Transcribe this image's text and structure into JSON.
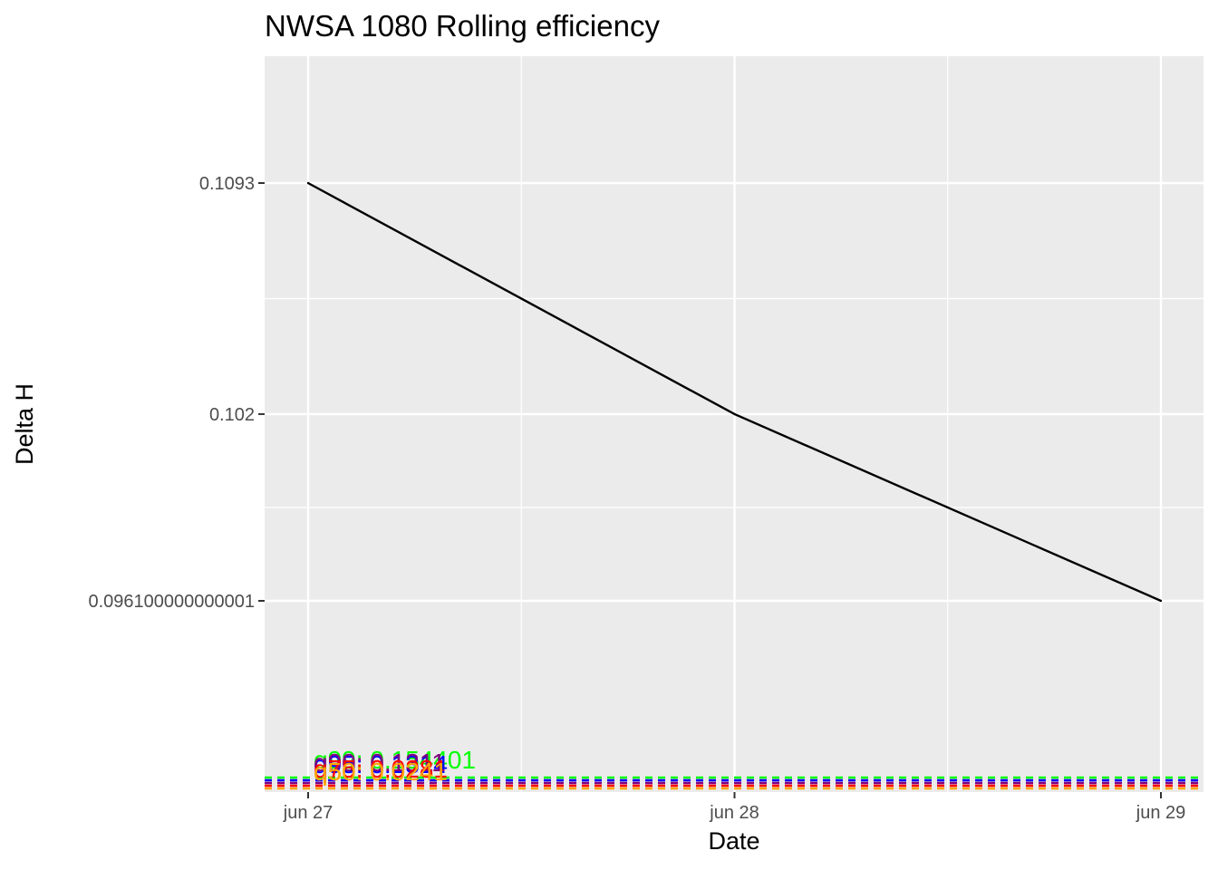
{
  "chart_data": {
    "type": "line",
    "title": "NWSA 1080 Rolling efficiency",
    "xlabel": "Date",
    "ylabel": "Delta H",
    "x": [
      "2024-06-27",
      "2024-06-28",
      "2024-06-29"
    ],
    "x_tick_labels": [
      "jun 27",
      "jun 28",
      "jun 29"
    ],
    "series": [
      {
        "values": [
          0.1093,
          0.102,
          0.0961
        ],
        "color": "#000000"
      }
    ],
    "y_ticks": [
      0.0961,
      0.102,
      0.1093
    ],
    "y_tick_labels": [
      "0.096100000000001",
      "0.102",
      "0.1093"
    ],
    "hlines": [
      {
        "label": "q99: 0.154401",
        "color": "#00ff00",
        "style": "dashed"
      },
      {
        "label": "q95: 0.1314",
        "color": "#0000ff",
        "style": "dashed"
      },
      {
        "label": "q90: 0.1311",
        "color": "#800080",
        "style": "dashed"
      },
      {
        "label": "q75: 0.0281",
        "color": "#ff0000",
        "style": "dashed"
      },
      {
        "label": "q50: 0.0241",
        "color": "#ffa500",
        "style": "dashed"
      }
    ],
    "grid": true,
    "legend": "none",
    "background": "#ebebeb",
    "grid_color": "#ffffff"
  }
}
